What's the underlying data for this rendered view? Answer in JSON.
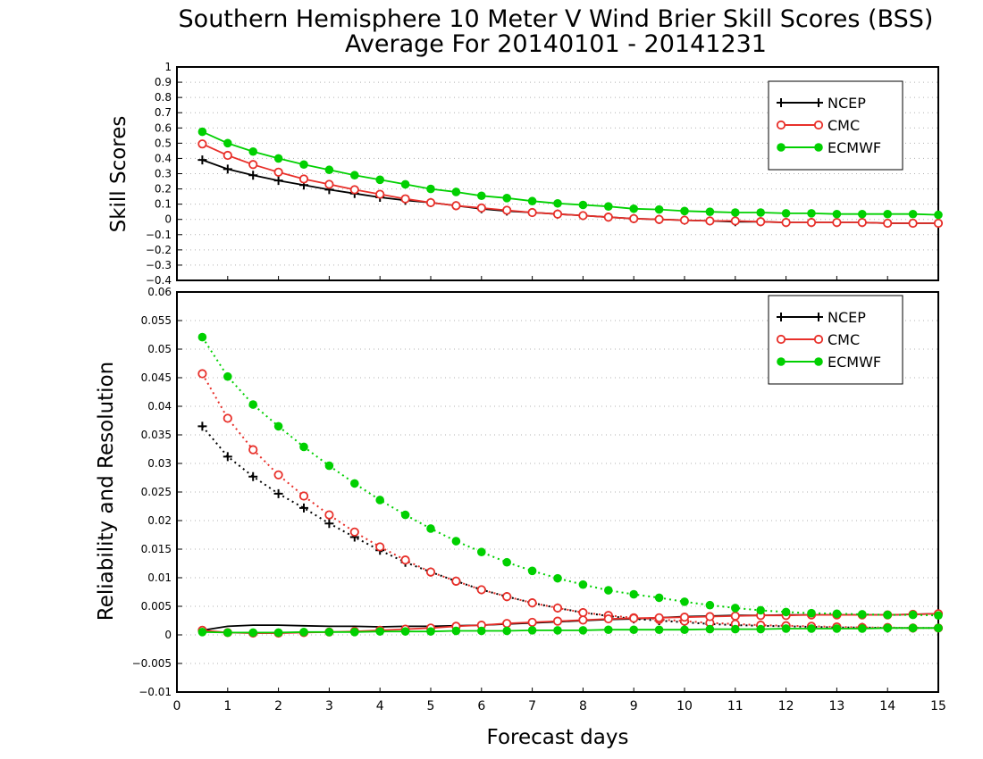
{
  "chart_data": {
    "title": "Southern Hemisphere 10 Meter V Wind Brier Skill Scores (BSS)",
    "subtitle": "Average For 20140101 - 20141231",
    "xlabel": "Forecast days",
    "xlim": [
      0,
      15
    ],
    "xticks": [
      "0",
      "1",
      "2",
      "3",
      "4",
      "5",
      "6",
      "7",
      "8",
      "9",
      "10",
      "11",
      "12",
      "13",
      "14",
      "15"
    ],
    "x": [
      0.5,
      1,
      1.5,
      2,
      2.5,
      3,
      3.5,
      4,
      4.5,
      5,
      5.5,
      6,
      6.5,
      7,
      7.5,
      8,
      8.5,
      9,
      9.5,
      10,
      10.5,
      11,
      11.5,
      12,
      12.5,
      13,
      13.5,
      14,
      14.5,
      15
    ],
    "colors": {
      "NCEP": "#000000",
      "CMC": "#e8302a",
      "ECMWF": "#00d000"
    },
    "panels": [
      {
        "type": "line",
        "ylabel": "Skill Scores",
        "ylim": [
          -0.4,
          1
        ],
        "yticks": [
          "−0.4",
          "−0.3",
          "−0.2",
          "−0.1",
          "0",
          "0.1",
          "0.2",
          "0.3",
          "0.4",
          "0.5",
          "0.6",
          "0.7",
          "0.8",
          "0.9",
          "1"
        ],
        "grid": true,
        "legend": "top-right",
        "series": [
          {
            "name": "NCEP",
            "marker": "plus",
            "style": "solid",
            "values": [
              0.39,
              0.33,
              0.29,
              0.255,
              0.225,
              0.195,
              0.17,
              0.145,
              0.125,
              0.11,
              0.09,
              0.07,
              0.055,
              0.045,
              0.035,
              0.025,
              0.015,
              0.005,
              0.0,
              -0.005,
              -0.01,
              -0.015,
              -0.015,
              -0.02,
              -0.02,
              -0.02,
              -0.02,
              -0.025,
              -0.025,
              -0.025
            ]
          },
          {
            "name": "CMC",
            "marker": "open-circle",
            "style": "solid",
            "values": [
              0.495,
              0.42,
              0.36,
              0.31,
              0.265,
              0.23,
              0.195,
              0.165,
              0.135,
              0.11,
              0.09,
              0.075,
              0.06,
              0.045,
              0.035,
              0.025,
              0.015,
              0.005,
              0.0,
              -0.005,
              -0.01,
              -0.01,
              -0.015,
              -0.02,
              -0.02,
              -0.02,
              -0.02,
              -0.025,
              -0.025,
              -0.025
            ]
          },
          {
            "name": "ECMWF",
            "marker": "filled-circle",
            "style": "solid",
            "values": [
              0.575,
              0.5,
              0.445,
              0.4,
              0.36,
              0.325,
              0.29,
              0.26,
              0.23,
              0.2,
              0.18,
              0.155,
              0.14,
              0.12,
              0.105,
              0.095,
              0.085,
              0.07,
              0.065,
              0.055,
              0.05,
              0.045,
              0.045,
              0.04,
              0.04,
              0.035,
              0.035,
              0.035,
              0.035,
              0.03
            ]
          }
        ]
      },
      {
        "type": "line",
        "ylabel": "Reliability and Resolution",
        "ylim": [
          -0.01,
          0.06
        ],
        "yticks": [
          "−0.01",
          "−0.005",
          "0",
          "0.005",
          "0.01",
          "0.015",
          "0.02",
          "0.025",
          "0.03",
          "0.035",
          "0.04",
          "0.045",
          "0.05",
          "0.055",
          "0.06"
        ],
        "grid": true,
        "legend": "top-right",
        "series": [
          {
            "name": "NCEP",
            "role": "resolution",
            "marker": "plus",
            "style": "dotted",
            "values": [
              0.0365,
              0.0312,
              0.0277,
              0.0247,
              0.0222,
              0.0195,
              0.0171,
              0.0148,
              0.0127,
              0.011,
              0.0094,
              0.0079,
              0.0067,
              0.0056,
              0.0047,
              0.0039,
              0.0033,
              0.0028,
              0.0025,
              0.0022,
              0.0019,
              0.0017,
              0.0016,
              0.0015,
              0.0014,
              0.0013,
              0.0013,
              0.0012,
              0.0012,
              0.0012
            ]
          },
          {
            "name": "NCEP",
            "role": "reliability",
            "marker": "none",
            "style": "solid",
            "values": [
              0.0008,
              0.0015,
              0.0017,
              0.0017,
              0.0016,
              0.0015,
              0.0015,
              0.0014,
              0.0015,
              0.0015,
              0.0016,
              0.0017,
              0.0019,
              0.0021,
              0.0023,
              0.0025,
              0.0027,
              0.0028,
              0.003,
              0.0032,
              0.0033,
              0.0034,
              0.0034,
              0.0035,
              0.0035,
              0.0035,
              0.0035,
              0.0035,
              0.0036,
              0.0037
            ]
          },
          {
            "name": "CMC",
            "role": "resolution",
            "marker": "open-circle",
            "style": "dotted",
            "values": [
              0.0457,
              0.0379,
              0.0324,
              0.028,
              0.0243,
              0.021,
              0.018,
              0.0154,
              0.0131,
              0.011,
              0.0094,
              0.0079,
              0.0067,
              0.0056,
              0.0047,
              0.0039,
              0.0034,
              0.003,
              0.0027,
              0.0024,
              0.0021,
              0.0019,
              0.0017,
              0.0016,
              0.0015,
              0.0014,
              0.0013,
              0.0013,
              0.0012,
              0.0012
            ]
          },
          {
            "name": "CMC",
            "role": "reliability",
            "marker": "open-circle",
            "style": "solid",
            "values": [
              0.0008,
              0.0004,
              0.0003,
              0.0003,
              0.0004,
              0.0005,
              0.0006,
              0.0008,
              0.001,
              0.0012,
              0.0015,
              0.0017,
              0.002,
              0.0022,
              0.0024,
              0.0026,
              0.0028,
              0.0029,
              0.003,
              0.0031,
              0.0032,
              0.0033,
              0.0034,
              0.0034,
              0.0035,
              0.0035,
              0.0035,
              0.0035,
              0.0036,
              0.0037
            ]
          },
          {
            "name": "ECMWF",
            "role": "resolution",
            "marker": "filled-circle",
            "style": "dotted",
            "values": [
              0.0521,
              0.0452,
              0.0403,
              0.0365,
              0.0329,
              0.0296,
              0.0265,
              0.0236,
              0.021,
              0.0186,
              0.0164,
              0.0145,
              0.0127,
              0.0112,
              0.0099,
              0.0088,
              0.0078,
              0.0071,
              0.0065,
              0.0058,
              0.0052,
              0.0047,
              0.0043,
              0.004,
              0.0038,
              0.0037,
              0.0036,
              0.0035,
              0.0035,
              0.0034
            ]
          },
          {
            "name": "ECMWF",
            "role": "reliability",
            "marker": "filled-circle",
            "style": "solid",
            "values": [
              0.0005,
              0.0004,
              0.0004,
              0.0004,
              0.0005,
              0.0005,
              0.0005,
              0.0006,
              0.0006,
              0.0006,
              0.0007,
              0.0007,
              0.0007,
              0.0008,
              0.0008,
              0.0008,
              0.0009,
              0.0009,
              0.0009,
              0.0009,
              0.001,
              0.001,
              0.001,
              0.0011,
              0.0011,
              0.0011,
              0.0011,
              0.0012,
              0.0012,
              0.0012
            ]
          }
        ]
      }
    ]
  }
}
